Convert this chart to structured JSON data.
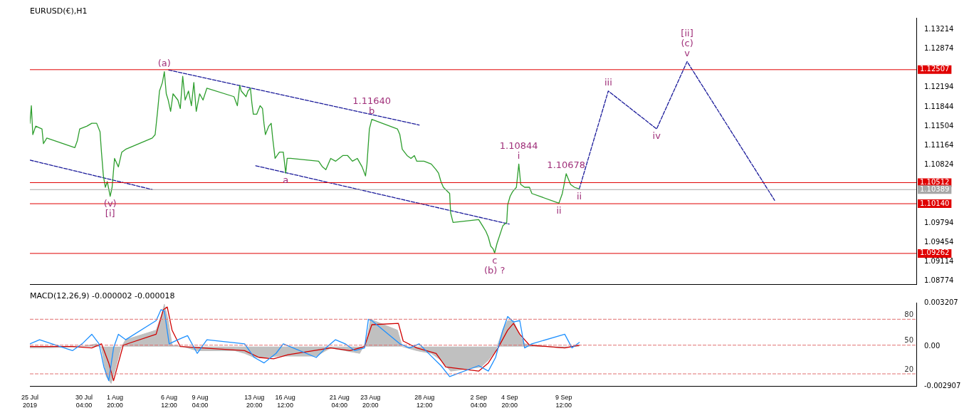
{
  "chart_data": [
    {
      "type": "line",
      "title": "EURUSD(€),H1",
      "xlim": [
        "2019-07-25T12:00",
        "2019-10-09T21:00"
      ],
      "ylim": [
        1.0872,
        1.1342
      ],
      "yticks": [
        1.13214,
        1.12874,
        1.12194,
        1.11844,
        1.11504,
        1.11164,
        1.10824,
        1.09794,
        1.09454,
        1.09114,
        1.08774
      ],
      "tick_labels": "y",
      "grid": false,
      "legend": false,
      "series": [
        {
          "color": "#2e9e2e",
          "x": [
            "2019-07-25T12:00",
            "2019-07-25T15:00",
            "2019-07-25T18:00",
            "2019-07-26T00:00",
            "2019-07-26T13:00",
            "2019-07-26T16:00",
            "2019-07-26T23:00",
            "2019-07-29T09:00",
            "2019-07-29T14:00",
            "2019-07-29T19:00",
            "2019-07-30T10:00",
            "2019-07-30T20:00",
            "2019-07-31T06:00",
            "2019-07-31T13:00",
            "2019-07-31T16:00",
            "2019-07-31T20:00",
            "2019-08-01T00:00",
            "2019-08-01T04:00",
            "2019-08-01T10:00",
            "2019-08-01T14:00",
            "2019-08-01T19:00",
            "2019-08-02T03:00",
            "2019-08-02T10:00",
            "2019-08-02T18:00",
            "2019-08-05T01:00",
            "2019-08-05T07:00",
            "2019-08-05T12:00",
            "2019-08-05T16:00",
            "2019-08-05T22:00",
            "2019-08-06T02:00",
            "2019-08-06T06:00",
            "2019-08-06T10:00",
            "2019-08-06T15:00",
            "2019-08-06T20:00",
            "2019-08-07T06:00",
            "2019-08-07T11:00",
            "2019-08-07T16:00",
            "2019-08-07T21:00",
            "2019-08-08T04:00",
            "2019-08-08T10:00",
            "2019-08-08T15:00",
            "2019-08-08T20:00",
            "2019-08-09T03:00",
            "2019-08-09T10:00",
            "2019-08-09T18:00",
            "2019-08-12T02:00",
            "2019-08-12T09:00",
            "2019-08-12T14:00",
            "2019-08-12T17:00",
            "2019-08-12T22:00",
            "2019-08-13T03:00",
            "2019-08-13T07:00",
            "2019-08-13T12:00",
            "2019-08-13T15:00",
            "2019-08-13T18:00",
            "2019-08-14T01:00",
            "2019-08-14T08:00",
            "2019-08-14T13:00",
            "2019-08-14T16:00",
            "2019-08-14T19:00",
            "2019-08-15T02:00",
            "2019-08-15T07:00",
            "2019-08-15T10:00",
            "2019-08-15T15:00",
            "2019-08-16T00:00",
            "2019-08-16T08:00",
            "2019-08-16T13:00",
            "2019-08-16T16:00",
            "2019-08-16T23:00",
            "2019-08-19T09:00",
            "2019-08-19T17:00",
            "2019-08-20T00:00",
            "2019-08-20T10:00",
            "2019-08-20T20:00",
            "2019-08-21T11:00",
            "2019-08-21T21:00",
            "2019-08-22T07:00",
            "2019-08-22T17:00",
            "2019-08-23T03:00",
            "2019-08-23T10:00",
            "2019-08-23T13:00",
            "2019-08-23T18:00",
            "2019-08-23T23:00",
            "2019-08-26T04:00",
            "2019-08-26T09:00",
            "2019-08-26T14:00",
            "2019-08-27T00:00",
            "2019-08-27T08:00",
            "2019-08-27T15:00",
            "2019-08-27T20:00",
            "2019-08-28T11:00",
            "2019-08-29T02:00",
            "2019-08-29T12:00",
            "2019-08-29T17:00",
            "2019-08-29T22:00",
            "2019-08-30T03:00",
            "2019-08-30T10:00",
            "2019-08-30T16:00",
            "2019-08-30T18:00",
            "2019-08-30T23:00",
            "2019-09-02T04:00",
            "2019-09-02T12:00",
            "2019-09-02T19:00",
            "2019-09-03T00:00",
            "2019-09-03T05:00",
            "2019-09-03T10:00",
            "2019-09-03T13:00",
            "2019-09-03T18:00",
            "2019-09-04T06:00",
            "2019-09-04T14:00",
            "2019-09-04T16:00",
            "2019-09-04T21:00",
            "2019-09-05T02:00",
            "2019-09-05T10:00",
            "2019-09-05T15:00",
            "2019-09-05T19:00",
            "2019-09-06T03:00",
            "2019-09-06T13:00",
            "2019-09-06T18:00",
            "2019-09-09T02:00",
            "2019-09-09T09:00",
            "2019-09-09T17:00",
            "2019-09-10T02:00",
            "2019-09-10T10:00",
            "2019-09-10T20:00"
          ],
          "values": [
            1.1156,
            1.1187,
            1.1136,
            1.1151,
            1.1146,
            1.112,
            1.113,
            1.1113,
            1.1125,
            1.1146,
            1.1151,
            1.1156,
            1.1156,
            1.1141,
            1.1105,
            1.1063,
            1.1043,
            1.1053,
            1.1027,
            1.1043,
            1.1094,
            1.1079,
            1.1105,
            1.111,
            1.113,
            1.1136,
            1.1177,
            1.1213,
            1.1228,
            1.1247,
            1.1208,
            1.1197,
            1.1177,
            1.1208,
            1.1197,
            1.1182,
            1.1239,
            1.1197,
            1.1213,
            1.1187,
            1.1228,
            1.1177,
            1.1208,
            1.1197,
            1.1218,
            1.1203,
            1.1187,
            1.1223,
            1.1213,
            1.1208,
            1.1203,
            1.1213,
            1.1218,
            1.1192,
            1.1172,
            1.1172,
            1.1187,
            1.1182,
            1.1156,
            1.1136,
            1.1151,
            1.1156,
            1.113,
            1.1094,
            1.1105,
            1.1105,
            1.1068,
            1.1094,
            1.1094,
            1.1089,
            1.1079,
            1.1074,
            1.1094,
            1.1089,
            1.1099,
            1.1099,
            1.1089,
            1.1094,
            1.1079,
            1.1063,
            1.1084,
            1.1146,
            1.1163,
            1.1146,
            1.1136,
            1.111,
            1.1099,
            1.1094,
            1.1099,
            1.1089,
            1.1089,
            1.1084,
            1.1074,
            1.1068,
            1.1053,
            1.1043,
            1.1037,
            1.1032,
            1.0998,
            1.0981,
            1.0986,
            1.0975,
            1.0965,
            1.0955,
            1.0939,
            1.0934,
            1.0927,
            1.0944,
            1.0975,
            1.0981,
            1.1012,
            1.1027,
            1.1035,
            1.1043,
            1.1084,
            1.1048,
            1.1043,
            1.1043,
            1.1032,
            1.1015,
            1.1032,
            1.1067,
            1.1048,
            1.1043,
            1.104
          ]
        },
        {
          "color": "#1a1a9a",
          "line_style": "dashed",
          "x": [
            "2019-09-10T20:00",
            "2019-09-13T08:00",
            "2019-09-17T12:00",
            "2019-09-20T03:00",
            "2019-09-27T16:00"
          ],
          "values": [
            1.104,
            1.1213,
            1.1146,
            1.1265,
            1.102
          ]
        },
        {
          "color": "#1a1a9a",
          "line_style": "dashed",
          "x": [
            "2019-08-06T11:00",
            "2019-08-28T01:00"
          ],
          "values": [
            1.125,
            1.1153
          ]
        },
        {
          "color": "#1a1a9a",
          "line_style": "dashed",
          "x": [
            "2019-07-25T12:00",
            "2019-08-05T01:00"
          ],
          "values": [
            1.1091,
            1.1039
          ]
        },
        {
          "color": "#1a1a9a",
          "line_style": "dashed",
          "x": [
            "2019-08-13T23:00",
            "2019-09-04T19:00"
          ],
          "values": [
            1.1081,
            1.0978
          ]
        }
      ],
      "ref_lines": [
        {
          "axis": "y",
          "value": 1.12507,
          "label": "1.12507",
          "color": "#e00000"
        },
        {
          "axis": "y",
          "value": 1.10512,
          "label": "1.10512",
          "color": "#e00000"
        },
        {
          "axis": "y",
          "value": 1.10389,
          "label": "1.10389",
          "color": "#a8a8a8"
        },
        {
          "axis": "y",
          "value": 1.1014,
          "label": "1.10140",
          "color": "#e00000"
        },
        {
          "axis": "y",
          "value": 1.09262,
          "label": "1.09262",
          "color": "#e00000"
        }
      ],
      "annotations": [
        {
          "text": "v",
          "x": "2019-09-20T03:00",
          "y": 1.1265
        },
        {
          "text": "(c)",
          "x": "2019-09-20T03:00",
          "y": 1.1265
        },
        {
          "text": "[ii]",
          "x": "2019-09-20T03:00",
          "y": 1.1265
        },
        {
          "text": "iii",
          "x": "2019-09-13T08:00",
          "y": 1.1213
        },
        {
          "text": "iv",
          "x": "2019-09-17T12:00",
          "y": 1.1146
        },
        {
          "text": "(a)",
          "x": "2019-08-06T02:00",
          "y": 1.1247
        },
        {
          "text": "b",
          "x": "2019-08-23T23:00",
          "y": 1.1163
        },
        {
          "text": "1.11640",
          "x": "2019-08-23T23:00",
          "y": 1.1163
        },
        {
          "text": "a",
          "x": "2019-08-16T13:00",
          "y": 1.1068
        },
        {
          "text": "(v)",
          "x": "2019-08-01T10:00",
          "y": 1.1027
        },
        {
          "text": "[i]",
          "x": "2019-08-01T10:00",
          "y": 1.1027
        },
        {
          "text": "i",
          "x": "2019-09-05T15:00",
          "y": 1.1084
        },
        {
          "text": "1.10844",
          "x": "2019-09-05T15:00",
          "y": 1.1084
        },
        {
          "text": "1.10678",
          "x": "2019-09-09T17:00",
          "y": 1.1067
        },
        {
          "text": "ii",
          "x": "2019-09-09T02:00",
          "y": 1.1015
        },
        {
          "text": "ii",
          "x": "2019-09-10T20:00",
          "y": 1.104
        },
        {
          "text": "c",
          "x": "2019-09-03T13:00",
          "y": 1.0927
        },
        {
          "text": "(b) ?",
          "x": "2019-09-03T13:00",
          "y": 1.0927
        }
      ]
    },
    {
      "type": "line",
      "title": "MACD(12,26,9) -0.000002 -0.000018",
      "xlim": [
        "2019-07-25T12:00",
        "2019-10-09T21:00"
      ],
      "ylim": [
        -0.002907,
        0.003207
      ],
      "yticks": [
        0.003207,
        {
          "value": 0,
          "label": "0.00"
        },
        -0.002907
      ],
      "xticks": [
        {
          "value": "2019-07-25T12:00",
          "label": "25 Jul 2019"
        },
        {
          "value": "2019-07-30T04:00",
          "label": "30 Jul 04:00"
        },
        {
          "value": "2019-08-01T20:00",
          "label": "1 Aug 20:00"
        },
        {
          "value": "2019-08-06T12:00",
          "label": "6 Aug 12:00"
        },
        {
          "value": "2019-08-09T04:00",
          "label": "9 Aug 04:00"
        },
        {
          "value": "2019-08-13T20:00",
          "label": "13 Aug 20:00"
        },
        {
          "value": "2019-08-16T12:00",
          "label": "16 Aug 12:00"
        },
        {
          "value": "2019-08-21T04:00",
          "label": "21 Aug 04:00"
        },
        {
          "value": "2019-08-23T20:00",
          "label": "23 Aug 20:00"
        },
        {
          "value": "2019-08-28T12:00",
          "label": "28 Aug 12:00"
        },
        {
          "value": "2019-09-02T04:00",
          "label": "2 Sep 04:00"
        },
        {
          "value": "2019-09-04T20:00",
          "label": "4 Sep 20:00"
        },
        {
          "value": "2019-09-09T12:00",
          "label": "9 Sep 12:00"
        }
      ],
      "grid": false,
      "legend": false,
      "series": [
        {
          "type": "area",
          "color": "#c0c0c0",
          "x": [
            "2019-07-25T12:00",
            "2019-07-26T18:00",
            "2019-07-30T00:00",
            "2019-07-31T06:00",
            "2019-07-31T16:00",
            "2019-08-01T02:00",
            "2019-08-01T12:00",
            "2019-08-01T22:00",
            "2019-08-02T08:00",
            "2019-08-02T18:00",
            "2019-08-05T09:00",
            "2019-08-05T19:00",
            "2019-08-06T02:00",
            "2019-08-06T10:00",
            "2019-08-06T18:00",
            "2019-08-07T16:00",
            "2019-08-08T22:00",
            "2019-08-12T04:00",
            "2019-08-13T00:00",
            "2019-08-13T20:00",
            "2019-08-14T21:00",
            "2019-08-15T22:00",
            "2019-08-19T04:00",
            "2019-08-20T10:00",
            "2019-08-21T16:00",
            "2019-08-22T22:00",
            "2019-08-23T13:00",
            "2019-08-23T20:00",
            "2019-08-26T04:00",
            "2019-08-26T14:00",
            "2019-08-27T20:00",
            "2019-08-29T02:00",
            "2019-08-29T22:00",
            "2019-08-30T18:00",
            "2019-09-02T09:00",
            "2019-09-03T00:00",
            "2019-09-03T15:00",
            "2019-09-04T06:00",
            "2019-09-04T16:00",
            "2019-09-05T04:00",
            "2019-09-05T12:00",
            "2019-09-06T03:00",
            "2019-09-09T04:00",
            "2019-09-10T10:00",
            "2019-09-10T20:00"
          ],
          "values": [
            -0.0001,
            -0.0001,
            0,
            0.0002,
            -0.0001,
            -0.0022,
            -0.0027,
            -0.0015,
            -0.0001,
            0.0005,
            0.0012,
            0.0022,
            0.0031,
            0.0019,
            0.0001,
            0,
            -0.0003,
            -0.0003,
            -0.0005,
            -0.0008,
            -0.0008,
            -0.0007,
            -0.0007,
            -0.0001,
            -0.0003,
            -0.0005,
            0.0005,
            0.002,
            0.0012,
            0,
            -0.0003,
            -0.0005,
            -0.001,
            -0.0018,
            -0.0015,
            -0.001,
            -0.0003,
            0.0012,
            0.0019,
            0.0019,
            0.0012,
            0.0002,
            -0.0001,
            0,
            0.0001
          ]
        },
        {
          "color": "#1e90ff",
          "x": [
            "2019-07-25T12:00",
            "2019-07-26T08:00",
            "2019-07-29T04:00",
            "2019-07-30T00:00",
            "2019-07-30T20:00",
            "2019-07-31T11:00",
            "2019-07-31T21:00",
            "2019-08-01T07:00",
            "2019-08-01T17:00",
            "2019-08-02T03:00",
            "2019-08-02T18:00",
            "2019-08-05T09:00",
            "2019-08-05T19:00",
            "2019-08-06T02:00",
            "2019-08-06T12:00",
            "2019-08-07T06:00",
            "2019-08-08T02:00",
            "2019-08-08T22:00",
            "2019-08-09T18:00",
            "2019-08-13T00:00",
            "2019-08-13T20:00",
            "2019-08-14T16:00",
            "2019-08-15T17:00",
            "2019-08-16T08:00",
            "2019-08-19T04:00",
            "2019-08-20T00:00",
            "2019-08-20T20:00",
            "2019-08-21T16:00",
            "2019-08-22T12:00",
            "2019-08-23T08:00",
            "2019-08-23T16:00",
            "2019-08-23T23:00",
            "2019-08-26T09:00",
            "2019-08-27T05:00",
            "2019-08-28T01:00",
            "2019-08-29T02:00",
            "2019-08-29T22:00",
            "2019-08-30T16:00",
            "2019-09-02T04:00",
            "2019-09-03T00:00",
            "2019-09-03T15:00",
            "2019-09-04T06:00",
            "2019-09-04T16:00",
            "2019-09-05T04:00",
            "2019-09-05T17:00",
            "2019-09-06T03:00",
            "2019-09-06T18:00",
            "2019-09-09T14:00",
            "2019-09-10T05:00",
            "2019-09-10T20:00"
          ],
          "values": [
            0.0002,
            0.0005,
            -0.0003,
            0.0002,
            0.0009,
            0.0002,
            -0.0015,
            -0.0025,
            -0.0001,
            0.0009,
            0.0005,
            0.0019,
            0.0027,
            0.0026,
            0.0002,
            0.0005,
            0.0008,
            -0.0005,
            0.0005,
            0.0002,
            -0.0008,
            -0.0012,
            -0.0005,
            0.0002,
            -0.0008,
            -0.0001,
            0.0005,
            0.0002,
            -0.0003,
            -0.0001,
            0.002,
            0.0019,
            0.0002,
            -0.0001,
            0.0002,
            -0.0007,
            -0.0014,
            -0.0022,
            -0.0014,
            -0.0018,
            -0.0008,
            0.0012,
            0.0022,
            0.0018,
            0.0019,
            -0.0001,
            0.0002,
            0.0009,
            -0.0001,
            0.0003
          ]
        },
        {
          "color": "#d00000",
          "x": [
            "2019-07-25T12:00",
            "2019-07-29T04:00",
            "2019-07-30T20:00",
            "2019-07-31T16:00",
            "2019-08-01T07:00",
            "2019-08-01T17:00",
            "2019-08-02T03:00",
            "2019-08-02T13:00",
            "2019-08-05T09:00",
            "2019-08-06T00:00",
            "2019-08-06T08:00",
            "2019-08-06T18:00",
            "2019-08-07T11:00",
            "2019-08-09T08:00",
            "2019-08-13T00:00",
            "2019-08-14T06:00",
            "2019-08-15T12:00",
            "2019-08-16T18:00",
            "2019-08-20T10:00",
            "2019-08-22T02:00",
            "2019-08-23T08:00",
            "2019-08-23T23:00",
            "2019-08-26T06:00",
            "2019-08-26T16:00",
            "2019-08-27T20:00",
            "2019-08-29T12:00",
            "2019-08-30T08:00",
            "2019-09-02T04:00",
            "2019-09-03T00:00",
            "2019-09-03T20:00",
            "2019-09-04T16:00",
            "2019-09-05T04:00",
            "2019-09-05T17:00",
            "2019-09-06T13:00",
            "2019-09-09T14:00",
            "2019-09-10T20:00"
          ],
          "values": [
            0,
            0,
            -0.0001,
            0.0002,
            -0.0012,
            -0.0025,
            -0.0012,
            0.0001,
            0.0009,
            0.0027,
            0.0029,
            0.0012,
            0,
            -0.0001,
            -0.0003,
            -0.0008,
            -0.0009,
            -0.0006,
            -0.0001,
            -0.0003,
            0,
            0.0016,
            0.0017,
            0.0004,
            -0.0001,
            -0.0005,
            -0.0015,
            -0.0018,
            -0.0012,
            -0.0001,
            0.0012,
            0.0017,
            0.0009,
            0.0001,
            -0.0001,
            0.0001
          ]
        }
      ],
      "ref_lines": [
        {
          "axis": "y",
          "value": 0.002,
          "color": "#e07070",
          "line_style": "dashed"
        },
        {
          "axis": "y",
          "value": 0.0001,
          "color": "#e07070",
          "line_style": "dashed"
        },
        {
          "axis": "y",
          "value": -0.002,
          "color": "#e07070",
          "line_style": "dashed"
        }
      ],
      "annotations": [
        {
          "text": "80",
          "y": 0.002
        },
        {
          "text": "50",
          "y": 0.0001
        },
        {
          "text": "20",
          "y": -0.002
        }
      ]
    }
  ]
}
